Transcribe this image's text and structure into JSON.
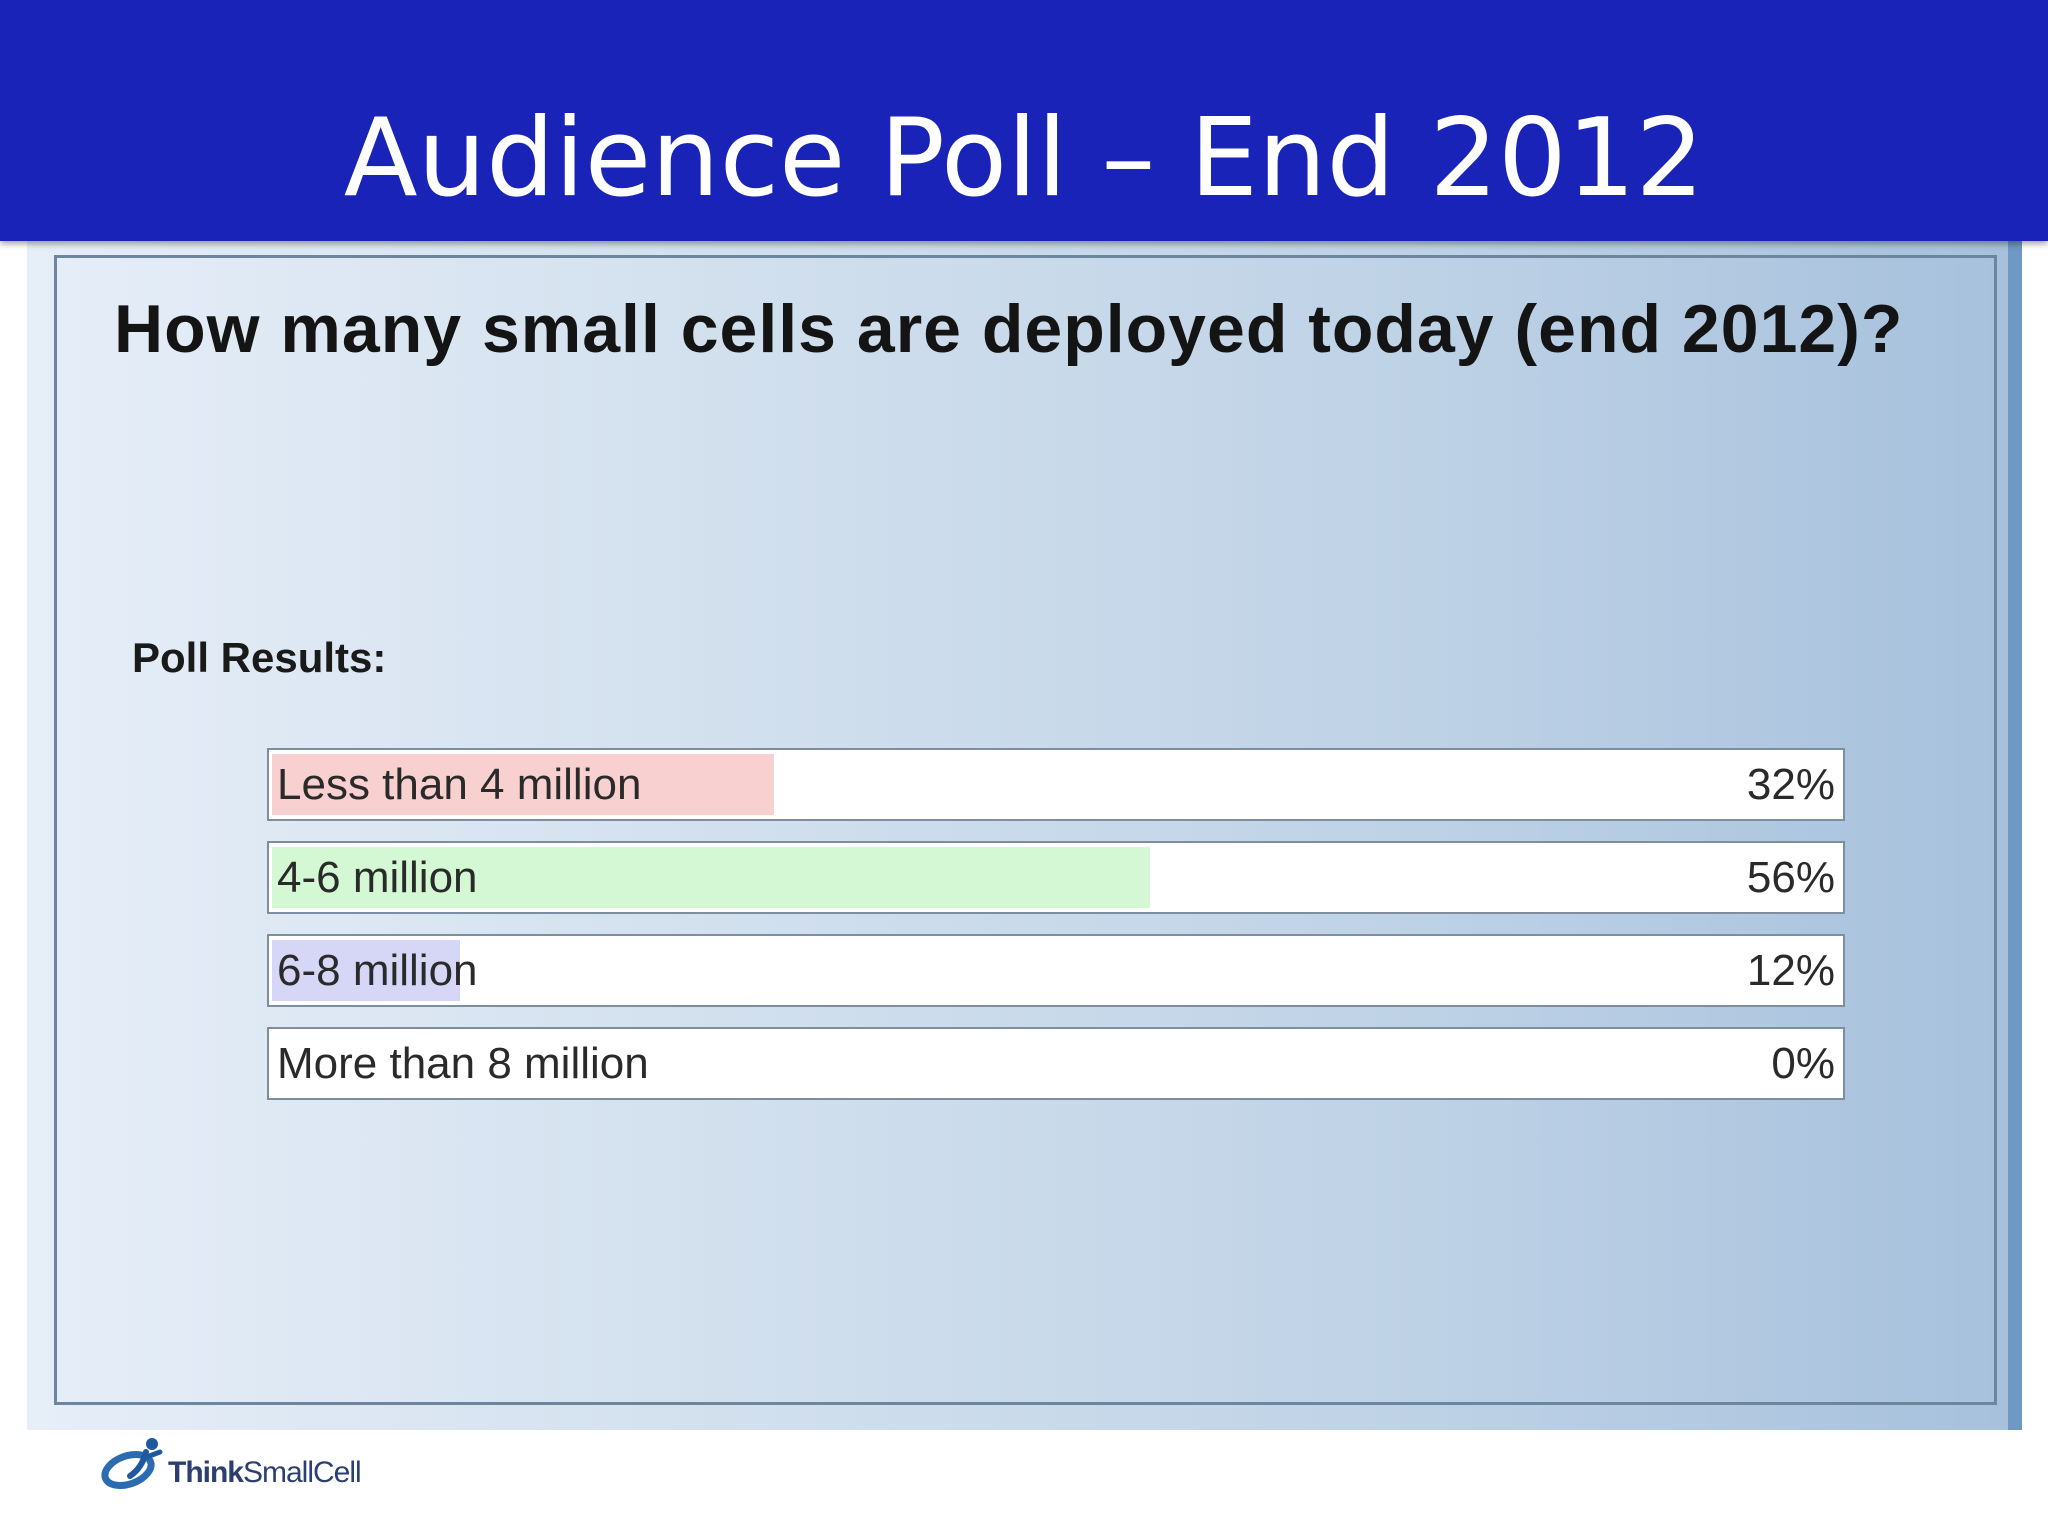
{
  "slide": {
    "title": "Audience Poll – End 2012",
    "question": "How many small cells are deployed today (end 2012)?",
    "poll_heading": "Poll Results:"
  },
  "chart_data": {
    "type": "bar",
    "orientation": "horizontal",
    "categories": [
      "Less than 4 million",
      "4-6 million",
      "6-8 million",
      "More than 8 million"
    ],
    "values": [
      32,
      56,
      12,
      0
    ],
    "value_labels": [
      "32%",
      "56%",
      "12%",
      "0%"
    ],
    "unit": "%",
    "xlim": [
      0,
      100
    ],
    "colors": [
      "#f8d0d0",
      "#d4f7d4",
      "#d6d6f7",
      "#e6e6e6"
    ],
    "grid": false,
    "legend": "none"
  },
  "logo": {
    "text_bold": "Think",
    "text_regular": "SmallCell",
    "icon": "person-swirl-logo-icon"
  }
}
